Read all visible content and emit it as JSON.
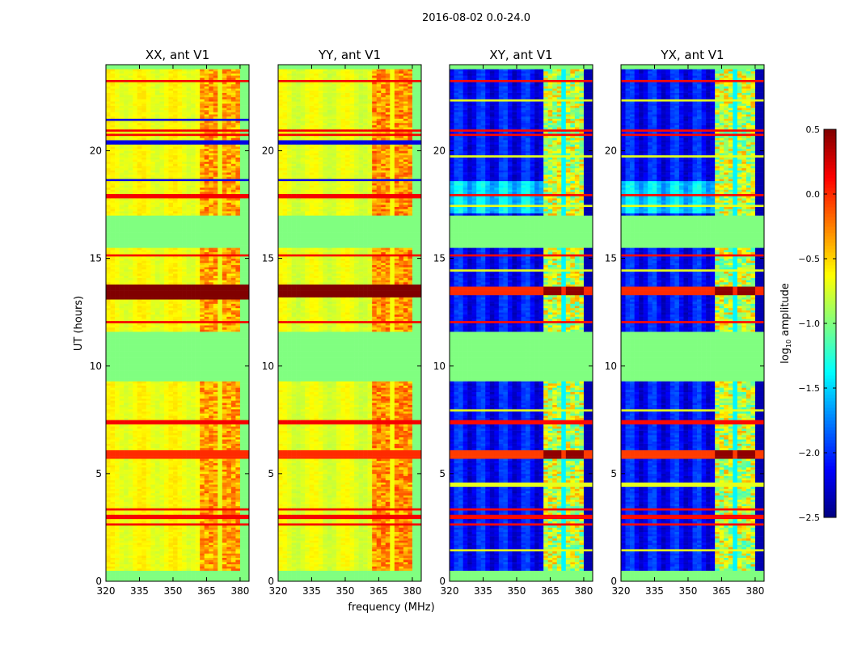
{
  "chart_data": {
    "type": "heatmap",
    "title": "2016-08-02 0.0-24.0",
    "xlabel": "frequency (MHz)",
    "ylabel": "UT (hours)",
    "xlim": [
      320,
      384
    ],
    "ylim": [
      0,
      24
    ],
    "xticks": [
      "320",
      "335",
      "350",
      "365",
      "380"
    ],
    "xtick_values": [
      320,
      335,
      350,
      365,
      380
    ],
    "yticks": [
      "0",
      "5",
      "10",
      "15",
      "20"
    ],
    "ytick_values": [
      0,
      5,
      10,
      15,
      20
    ],
    "colorbar": {
      "label": "log10 amplitude",
      "label_main": "log",
      "label_sub": "10",
      "label_rest": " amplitude",
      "colormap": "jet",
      "range": [
        -2.5,
        0.5
      ],
      "ticks": [
        "0.5",
        "0.0",
        "−0.5",
        "−1.0",
        "−1.5",
        "−2.0",
        "−2.5"
      ],
      "tick_values": [
        0.5,
        0.0,
        -0.5,
        -1.0,
        -1.5,
        -2.0,
        -2.5
      ]
    },
    "flag_value": -1.0,
    "flagged_ut_ranges": [
      [
        0.0,
        0.55
      ],
      [
        9.3,
        11.6
      ],
      [
        15.5,
        17.05
      ],
      [
        23.85,
        24.0
      ]
    ],
    "high_freq_columns_mhz": [
      [
        362,
        366
      ],
      [
        367,
        371
      ],
      [
        372,
        376
      ],
      [
        377,
        381
      ]
    ],
    "panels": [
      {
        "title": "XX, ant V1",
        "kind": "parallel",
        "base_low": -0.65,
        "base_high": -0.35,
        "gap_value": -0.7,
        "edge_value": -1.0,
        "bands": [
          [
            13.15,
            13.85,
            0.5
          ],
          [
            5.75,
            6.15,
            0.0
          ]
        ],
        "rfi_lines": [
          23.1,
          23.3,
          21.0,
          20.75,
          18.0,
          17.85,
          16.8,
          15.2,
          12.1,
          7.4,
          3.4,
          3.0,
          2.6,
          0.3
        ],
        "rfi_value": 0.15,
        "low_lines": [
          21.5,
          20.5,
          20.4,
          18.7
        ],
        "low_value": -2.2
      },
      {
        "title": "YY, ant V1",
        "kind": "parallel",
        "base_low": -0.7,
        "base_high": -0.3,
        "gap_value": -0.65,
        "edge_value": -1.0,
        "bands": [
          [
            13.2,
            13.8,
            0.5
          ],
          [
            5.75,
            6.15,
            0.0
          ]
        ],
        "rfi_lines": [
          23.1,
          23.3,
          21.0,
          20.75,
          18.0,
          17.85,
          16.8,
          15.2,
          12.1,
          7.4,
          3.4,
          3.0,
          2.6,
          0.3
        ],
        "rfi_value": 0.15,
        "low_lines": [
          20.5,
          20.4,
          18.7
        ],
        "low_value": -2.2
      },
      {
        "title": "XY, ant V1",
        "kind": "cross",
        "base_low": -2.1,
        "base_high": -0.8,
        "gap_value": -1.4,
        "edge_value": -2.35,
        "bands": [
          [
            13.3,
            13.7,
            0.0
          ],
          [
            5.75,
            6.15,
            -0.05
          ]
        ],
        "rfi_lines": [
          23.1,
          23.3,
          21.0,
          20.75,
          18.0,
          16.8,
          15.2,
          12.1,
          7.4,
          3.4,
          3.0,
          2.6
        ],
        "rfi_value": 0.1,
        "low_lines": [
          22.4,
          19.8,
          18.6,
          17.5,
          14.5,
          8.0,
          4.5,
          1.5
        ],
        "low_value": -0.7
      },
      {
        "title": "YX, ant V1",
        "kind": "cross",
        "base_low": -2.1,
        "base_high": -0.8,
        "gap_value": -1.4,
        "edge_value": -2.35,
        "bands": [
          [
            13.3,
            13.7,
            0.0
          ],
          [
            5.75,
            6.15,
            -0.05
          ]
        ],
        "rfi_lines": [
          23.1,
          23.3,
          21.0,
          20.75,
          18.0,
          16.8,
          15.2,
          12.1,
          7.4,
          3.4,
          3.0,
          2.6
        ],
        "rfi_value": 0.1,
        "low_lines": [
          22.4,
          19.8,
          18.6,
          17.5,
          14.5,
          8.0,
          4.5,
          1.5
        ],
        "low_value": -0.7
      }
    ]
  }
}
